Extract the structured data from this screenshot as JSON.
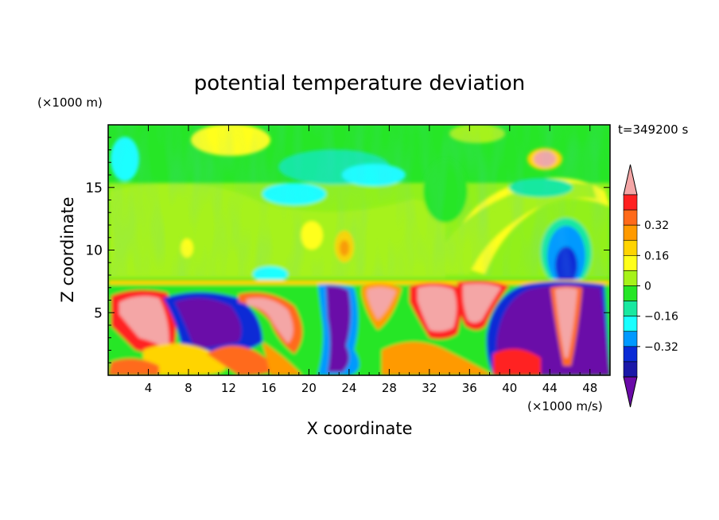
{
  "chart_data": {
    "type": "heatmap",
    "title": "potential temperature deviation",
    "xlabel": "X coordinate",
    "ylabel": "Z coordinate",
    "x_unit": "(×1000 m/s)",
    "y_unit": "(×1000 m)",
    "time_label": "t=349200 s",
    "xlim": [
      0,
      50
    ],
    "ylim": [
      0,
      20
    ],
    "x_ticks": [
      4,
      8,
      12,
      16,
      20,
      24,
      28,
      32,
      36,
      40,
      44,
      48
    ],
    "y_ticks": [
      5,
      10,
      15
    ],
    "colorbar": {
      "levels": [
        -0.48,
        -0.4,
        -0.32,
        -0.24,
        -0.16,
        -0.08,
        0,
        0.08,
        0.16,
        0.24,
        0.32,
        0.4
      ],
      "tick_values": [
        0.32,
        0.16,
        0,
        -0.16,
        -0.32
      ],
      "tick_labels": [
        "0.32",
        "0.16",
        "0",
        "−0.16",
        "−0.32"
      ],
      "colors_top_to_bottom": [
        "#f4a6a6",
        "#ff2020",
        "#ff6a1a",
        "#ff9a00",
        "#ffd400",
        "#ffff1a",
        "#a6f21a",
        "#26e626",
        "#19e8a0",
        "#1affff",
        "#0099ff",
        "#0a2bd6",
        "#1a18a8",
        "#6a0aa8"
      ],
      "extend": "both"
    },
    "field_description": {
      "upper_layer": "Mostly near 0 to slightly positive (green/light green) with yellow bands, cyan patches, a negative blue plume near x=44–46, z=8–11, and a pink positive patch near x=43–46, z=16–18.",
      "boundary": "Sharp interface near z=7.5.",
      "lower_layer": "Strong alternating structures: pink/red positive cells near x=2–7, x=29–34, x=35–40 and x=44–46; deep purple/blue negative regions near x=8–14, x=22–25, x=38–44."
    }
  }
}
